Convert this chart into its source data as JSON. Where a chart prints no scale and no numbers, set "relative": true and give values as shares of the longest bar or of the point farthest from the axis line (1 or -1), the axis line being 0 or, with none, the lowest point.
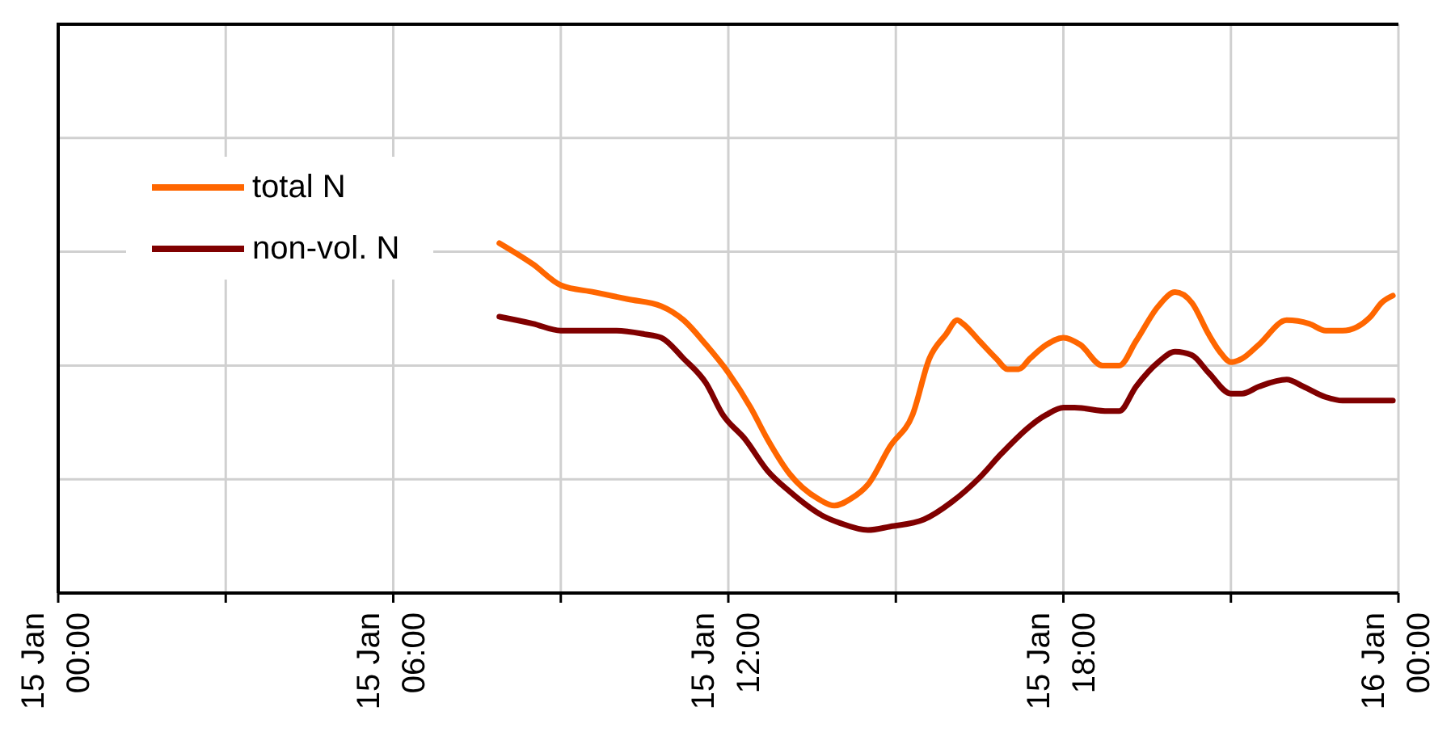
{
  "chart_data": {
    "type": "line",
    "relative": true,
    "grid": true,
    "legend": "top left",
    "line_style": "solid",
    "xlim": [
      "--01-15T00:00",
      "--01-16T00:00"
    ],
    "xticks": [
      {
        "value": "--01-15T00:00",
        "label": "15 Jan 00:00"
      },
      {
        "value": "--01-15T03:00",
        "label": null
      },
      {
        "value": "--01-15T06:00",
        "label": "15 Jan 06:00"
      },
      {
        "value": "--01-15T09:00",
        "label": null
      },
      {
        "value": "--01-15T12:00",
        "label": "15 Jan 12:00"
      },
      {
        "value": "--01-15T15:00",
        "label": null
      },
      {
        "value": "--01-15T18:00",
        "label": "15 Jan 18:00"
      },
      {
        "value": "--01-15T21:00",
        "label": null
      },
      {
        "value": "--01-16T00:00",
        "label": "16 Jan 00:00"
      }
    ],
    "series": [
      {
        "name": "total N",
        "color": "#ff6600",
        "x": [
          "--01-15T07:54",
          "--01-15T08:30",
          "--01-15T09:00",
          "--01-15T09:36",
          "--01-15T10:12",
          "--01-15T10:48",
          "--01-15T11:12",
          "--01-15T11:36",
          "--01-15T12:00",
          "--01-15T12:24",
          "--01-15T12:42",
          "--01-15T13:06",
          "--01-15T13:36",
          "--01-15T13:54",
          "--01-15T14:12",
          "--01-15T14:30",
          "--01-15T14:54",
          "--01-15T15:18",
          "--01-15T15:36",
          "--01-15T15:54",
          "--01-15T16:06",
          "--01-15T16:12",
          "--01-15T16:30",
          "--01-15T16:48",
          "--01-15T17:00",
          "--01-15T17:12",
          "--01-15T17:24",
          "--01-15T17:42",
          "--01-15T18:00",
          "--01-15T18:18",
          "--01-15T18:42",
          "--01-15T19:00",
          "--01-15T19:18",
          "--01-15T19:42",
          "--01-15T20:00",
          "--01-15T20:18",
          "--01-15T20:36",
          "--01-15T20:48",
          "--01-15T21:00",
          "--01-15T21:12",
          "--01-15T21:30",
          "--01-15T22:00",
          "--01-15T22:24",
          "--01-15T22:42",
          "--01-15T23:00",
          "--01-15T23:30",
          "--01-15T23:42",
          "--01-15T23:54"
        ],
        "values": [
          1.0,
          0.94,
          0.88,
          0.86,
          0.84,
          0.82,
          0.78,
          0.71,
          0.63,
          0.53,
          0.44,
          0.34,
          0.27,
          0.25,
          0.27,
          0.31,
          0.42,
          0.51,
          0.67,
          0.74,
          0.78,
          0.77,
          0.72,
          0.67,
          0.64,
          0.64,
          0.67,
          0.71,
          0.73,
          0.71,
          0.65,
          0.65,
          0.72,
          0.82,
          0.86,
          0.83,
          0.74,
          0.69,
          0.66,
          0.67,
          0.71,
          0.78,
          0.77,
          0.75,
          0.75,
          0.79,
          0.83,
          0.85
        ]
      },
      {
        "name": "non-vol. N",
        "color": "#800000",
        "x": [
          "--01-15T07:54",
          "--01-15T08:30",
          "--01-15T09:00",
          "--01-15T10:00",
          "--01-15T10:30",
          "--01-15T10:48",
          "--01-15T11:12",
          "--01-15T11:36",
          "--01-15T11:54",
          "--01-15T12:18",
          "--01-15T12:42",
          "--01-15T13:06",
          "--01-15T13:42",
          "--01-15T14:00",
          "--01-15T14:30",
          "--01-15T14:54",
          "--01-15T15:30",
          "--01-15T16:00",
          "--01-15T16:30",
          "--01-15T16:54",
          "--01-15T17:42",
          "--01-15T18:00",
          "--01-15T18:12",
          "--01-15T18:48",
          "--01-15T19:00",
          "--01-15T19:18",
          "--01-15T19:42",
          "--01-15T20:00",
          "--01-15T20:18",
          "--01-15T20:36",
          "--01-15T21:00",
          "--01-15T21:12",
          "--01-15T21:30",
          "--01-15T22:00",
          "--01-15T22:18",
          "--01-15T22:42",
          "--01-15T23:00",
          "--01-15T23:54"
        ],
        "values": [
          0.79,
          0.77,
          0.75,
          0.75,
          0.74,
          0.73,
          0.67,
          0.6,
          0.51,
          0.44,
          0.35,
          0.29,
          0.22,
          0.2,
          0.18,
          0.19,
          0.21,
          0.26,
          0.33,
          0.4,
          0.51,
          0.53,
          0.53,
          0.52,
          0.52,
          0.59,
          0.66,
          0.69,
          0.68,
          0.63,
          0.57,
          0.57,
          0.59,
          0.61,
          0.59,
          0.56,
          0.55,
          0.55
        ]
      }
    ]
  }
}
